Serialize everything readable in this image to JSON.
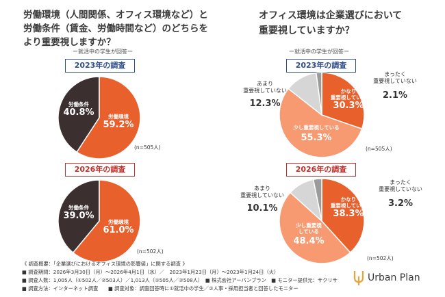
{
  "left_question": [
    "労働環境（人間関係、オフィス環境など）と",
    "労働条件（賃金、労働時間など）のどちらを",
    "より重要視しますか？"
  ],
  "right_question": [
    "オフィス環境は企業選びにおいて",
    "重要視していますか？"
  ],
  "respondent_note": "ー就活中の学生が回答ー",
  "colors": {
    "orange": "#e8602c",
    "light_orange": "#f79a72",
    "dark": "#3b2f2f",
    "gray": "#d6d6d6",
    "dark_gray": "#9b9b9b",
    "blue": "#2f4e8a",
    "red": "#c0302c"
  },
  "chart_data": [
    {
      "type": "pie",
      "year_label": "2023年の調査",
      "n_label": "(n=505人)",
      "slices": [
        {
          "name": "労働条件",
          "value": 40.8,
          "label": "40.8%"
        },
        {
          "name": "労働環境",
          "value": 59.2,
          "label": "59.2%"
        }
      ]
    },
    {
      "type": "pie",
      "year_label": "2026年の調査",
      "n_label": "(n=502人)",
      "slices": [
        {
          "name": "労働条件",
          "value": 39.0,
          "label": "39.0%"
        },
        {
          "name": "労働環境",
          "value": 61.0,
          "label": "61.0%"
        }
      ]
    },
    {
      "type": "pie",
      "year_label": "2023年の調査",
      "n_label": "(n=505人)",
      "slices": [
        {
          "name": "かなり重要視している",
          "value": 30.3,
          "label": "30.3%"
        },
        {
          "name": "少し重要視している",
          "value": 55.3,
          "label": "55.3%"
        },
        {
          "name": "あまり重要視していない",
          "value": 12.3,
          "label": "12.3%"
        },
        {
          "name": "まったく重要視していない",
          "value": 2.1,
          "label": "2.1%"
        }
      ]
    },
    {
      "type": "pie",
      "year_label": "2026年の調査",
      "n_label": "(n=502人)",
      "slices": [
        {
          "name": "かなり重要視している",
          "value": 38.3,
          "label": "38.3%"
        },
        {
          "name": "少し重要視している",
          "value": 48.4,
          "label": "48.4%"
        },
        {
          "name": "あまり重要視していない",
          "value": 10.1,
          "label": "10.1%"
        },
        {
          "name": "まったく重要視していない",
          "value": 3.2,
          "label": "3.2%"
        }
      ]
    }
  ],
  "labels": {
    "kanari": [
      "かなり",
      "重要視している"
    ],
    "sukoshi_a": [
      "少し重要視している"
    ],
    "sukoshi_b": [
      "少し重要視",
      "している"
    ],
    "amari": [
      "あまり",
      "重要視していない"
    ],
    "mattaku": [
      "まったく",
      "重要視していない"
    ]
  },
  "footer": [
    "《 調査概要：「企業選びにおけるオフィス環境の影響値」に関する調査 》",
    "■ 調査期間：2026年3月30日（月）～2026年4月1日（水）／　2023年1月23日（月）～2023年1月24日（火）",
    "■ 調査人数：1,005人（①502人／②503人）／1,013人（①505人／②508人）　■ 株式会社アーバンプラン　■ モニター提供元：サクリサ",
    "■ 調査方法：インターネット調査　　■ 調査対象：調査回答時に①就活中の学生／②人事・採用担当者と回答したモニター"
  ],
  "logo": {
    "text": "Urban Plan"
  }
}
